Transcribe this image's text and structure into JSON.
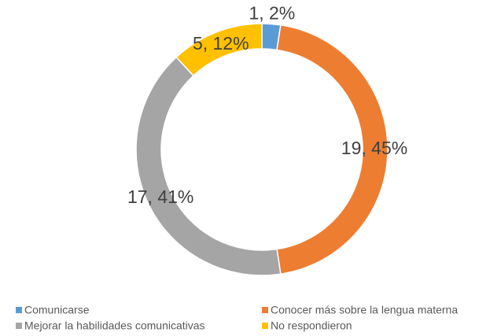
{
  "chart_data": {
    "type": "donut",
    "categories": [
      "Comunicarse",
      "Conocer más sobre la lengua materna",
      "Mejorar la habilidades comunicativas",
      "No respondieron"
    ],
    "values": [
      1,
      19,
      17,
      5
    ],
    "value_labels": [
      "1, 2%",
      "19, 45%",
      "17, 41%",
      "5, 12%"
    ],
    "colors": [
      "#5b9bd5",
      "#ed7d31",
      "#a5a5a5",
      "#ffc000"
    ],
    "legend": "bottom"
  }
}
